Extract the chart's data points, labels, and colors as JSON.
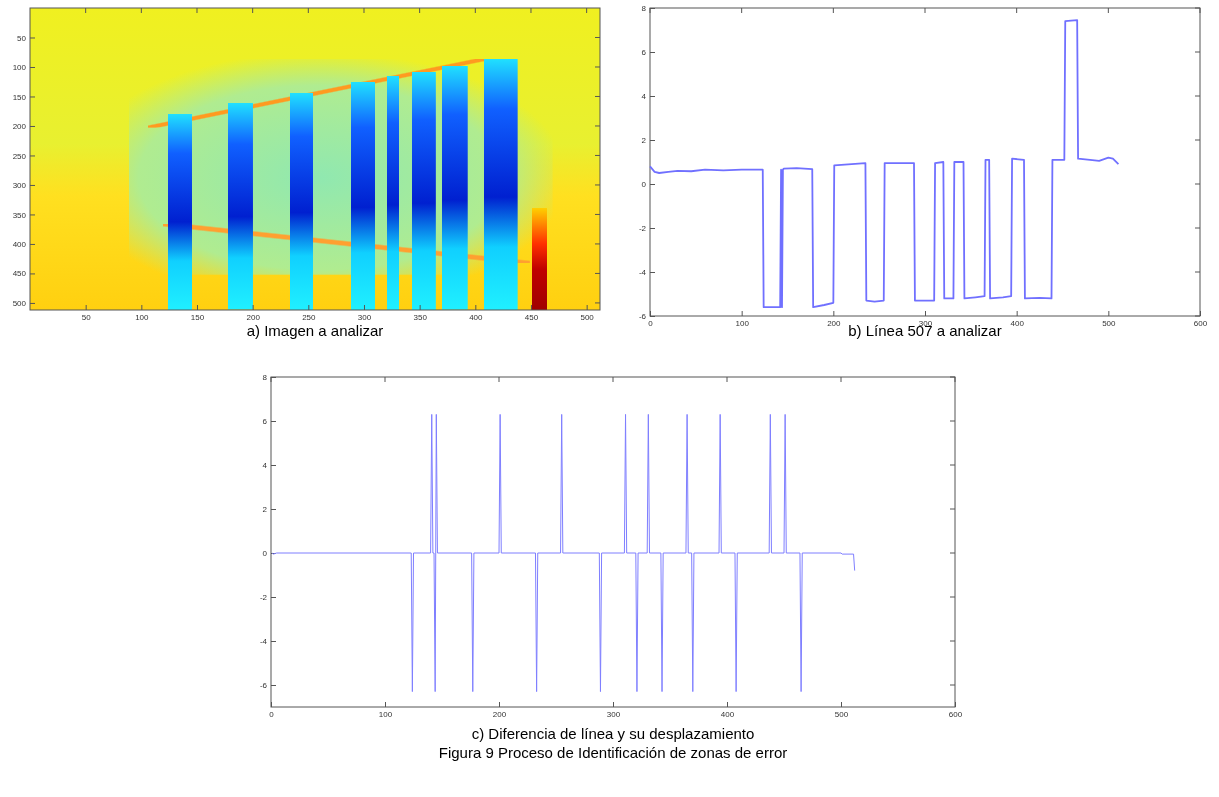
{
  "chart_data": [
    {
      "type": "heatmap",
      "title": "a) Imagen a analizar",
      "xlim": [
        0,
        512
      ],
      "ylim": [
        512,
        0
      ],
      "xticks": [
        50,
        100,
        150,
        200,
        250,
        300,
        350,
        400,
        450,
        500
      ],
      "yticks": [
        50,
        100,
        150,
        200,
        250,
        300,
        350,
        400,
        450,
        500
      ]
    },
    {
      "type": "line",
      "title": "b) Línea 507 a analizar",
      "xlim": [
        0,
        600
      ],
      "ylim": [
        -6,
        8
      ],
      "xticks": [
        0,
        100,
        200,
        300,
        400,
        500,
        600
      ],
      "yticks": [
        -6,
        -4,
        -2,
        0,
        2,
        4,
        6,
        8
      ],
      "series": [
        {
          "color": "#7070ff",
          "x": [
            0,
            5,
            10,
            20,
            30,
            45,
            60,
            80,
            100,
            123,
            124,
            142,
            143,
            144,
            145,
            146,
            160,
            177,
            178,
            190,
            200,
            201,
            220,
            235,
            236,
            245,
            255,
            256,
            270,
            288,
            289,
            300,
            310,
            311,
            320,
            321,
            331,
            332,
            342,
            343,
            355,
            365,
            366,
            370,
            371,
            385,
            394,
            395,
            408,
            409,
            425,
            438,
            439,
            452,
            453,
            466,
            467,
            480,
            490,
            500,
            505,
            511
          ],
          "values": [
            0.8,
            0.55,
            0.5,
            0.55,
            0.6,
            0.58,
            0.65,
            0.62,
            0.65,
            0.65,
            -5.6,
            -5.6,
            0.65,
            -5.6,
            0.65,
            0.7,
            0.72,
            0.68,
            -5.6,
            -5.5,
            -5.4,
            0.85,
            0.9,
            0.95,
            -5.3,
            -5.35,
            -5.3,
            0.95,
            0.95,
            0.95,
            -5.3,
            -5.3,
            -5.3,
            0.95,
            1.0,
            -5.2,
            -5.2,
            1.0,
            1.0,
            -5.2,
            -5.15,
            -5.1,
            1.1,
            1.1,
            -5.2,
            -5.15,
            -5.1,
            1.15,
            1.1,
            -5.2,
            -5.18,
            -5.2,
            1.1,
            1.1,
            7.4,
            7.45,
            1.15,
            1.1,
            1.05,
            1.2,
            1.15,
            0.9
          ]
        }
      ]
    },
    {
      "type": "line",
      "title": "c) Diferencia de línea y su desplazamiento",
      "xlim": [
        0,
        600
      ],
      "ylim": [
        -7,
        8
      ],
      "xticks": [
        0,
        100,
        200,
        300,
        400,
        500,
        600
      ],
      "yticks": [
        -6,
        -4,
        -2,
        0,
        2,
        4,
        6,
        8
      ],
      "annotations": [
        "Figura 9 Proceso de Identificación de zonas de error"
      ],
      "series": [
        {
          "color": "#7f7fff",
          "x": [
            1,
            2,
            5,
            123,
            124,
            125,
            140,
            141,
            142,
            143,
            144,
            145,
            146,
            176,
            177,
            178,
            200,
            201,
            202,
            232,
            233,
            234,
            254,
            255,
            256,
            288,
            289,
            290,
            310,
            311,
            312,
            320,
            321,
            322,
            330,
            331,
            332,
            342,
            343,
            344,
            364,
            365,
            366,
            369,
            370,
            371,
            393,
            394,
            395,
            407,
            408,
            409,
            437,
            438,
            439,
            450,
            451,
            452,
            464,
            465,
            466,
            500,
            501,
            511,
            512
          ],
          "values": [
            0,
            -0.05,
            0,
            0,
            -6.3,
            0,
            0,
            6.3,
            0,
            0,
            -6.3,
            6.3,
            0,
            0,
            -6.3,
            0,
            0,
            6.3,
            0,
            0,
            -6.3,
            0,
            0,
            6.3,
            0,
            0,
            -6.3,
            0,
            0,
            6.3,
            0,
            0,
            -6.3,
            0,
            0,
            6.3,
            0,
            0,
            -6.3,
            0,
            0,
            6.3,
            0,
            0,
            -6.3,
            0,
            0,
            6.3,
            0,
            0,
            -6.3,
            0,
            0,
            6.3,
            0,
            0,
            6.3,
            0,
            0,
            -6.3,
            0,
            0,
            -0.05,
            -0.05,
            -0.8
          ]
        }
      ]
    }
  ]
}
